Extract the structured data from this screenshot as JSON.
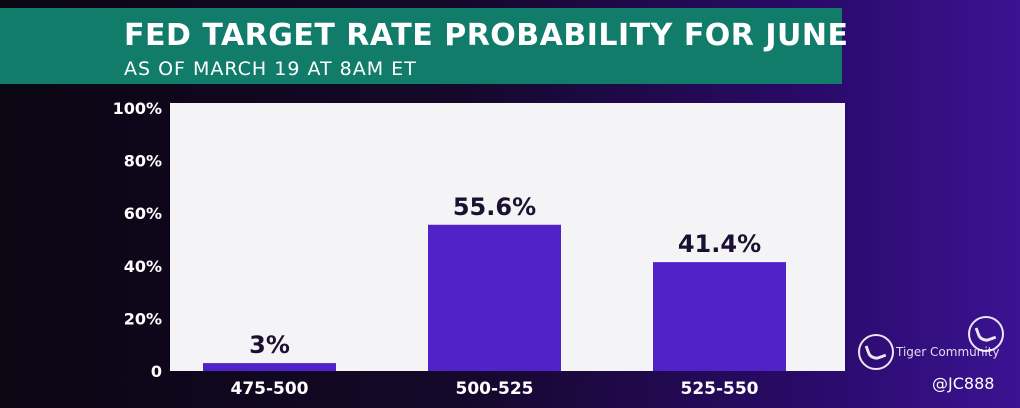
{
  "header": {
    "title": "FED TARGET RATE PROBABILITY FOR JUNE",
    "subtitle": "AS OF MARCH 19 AT 8AM ET"
  },
  "colors": {
    "header_bg": "#127c6b",
    "bar": "#5222c9",
    "plot_bg": "#f4f3f6"
  },
  "chart_data": {
    "type": "bar",
    "title": "FED TARGET RATE PROBABILITY FOR JUNE",
    "subtitle": "AS OF MARCH 19 AT 8AM ET",
    "categories": [
      "475-500",
      "500-525",
      "525-550"
    ],
    "values": [
      3,
      55.6,
      41.4
    ],
    "value_labels": [
      "3%",
      "55.6%",
      "41.4%"
    ],
    "ylim": [
      0,
      100
    ],
    "yticks": [
      0,
      20,
      40,
      60,
      80,
      100
    ],
    "ytick_labels": [
      "0",
      "20%",
      "40%",
      "60%",
      "80%",
      "100%"
    ],
    "xlabel": "",
    "ylabel": "",
    "grid": false
  },
  "watermark": {
    "brand": "Tiger Community",
    "handle": "@JC888",
    "icon": "tiger-logo-icon"
  }
}
